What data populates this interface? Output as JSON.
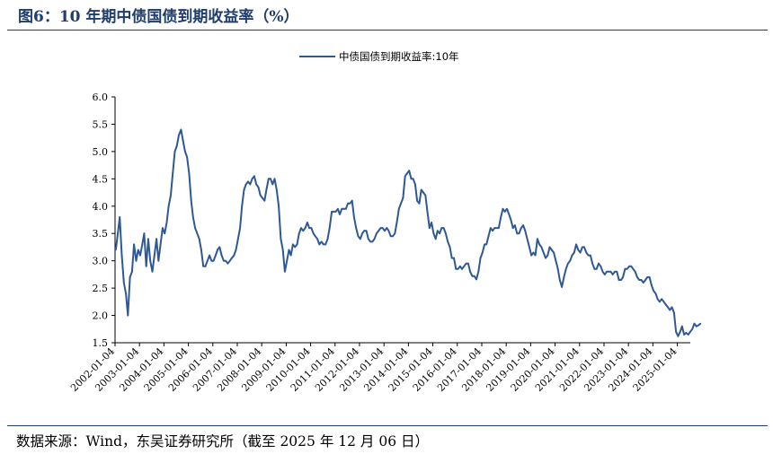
{
  "figure": {
    "title": "图6：10 年期中债国债到期收益率（%）",
    "source": "数据来源：Wind，东吴证券研究所（截至 2025 年 12 月 06 日）"
  },
  "colors": {
    "line": "#2f5994",
    "rule": "#1f3e6e",
    "axis": "#000000"
  },
  "chart_data": {
    "type": "line",
    "title": "",
    "xlabel": "",
    "ylabel": "",
    "ylim": [
      1.5,
      6.0
    ],
    "yticks": [
      "1.5",
      "2.0",
      "2.5",
      "3.0",
      "3.5",
      "4.0",
      "4.5",
      "5.0",
      "5.5",
      "6.0"
    ],
    "xticks": [
      "2002-01-04",
      "2003-01-04",
      "2004-01-04",
      "2005-01-04",
      "2006-01-04",
      "2007-01-04",
      "2008-01-04",
      "2009-01-04",
      "2010-01-04",
      "2011-01-04",
      "2012-01-04",
      "2013-01-04",
      "2014-01-04",
      "2015-01-04",
      "2016-01-04",
      "2017-01-04",
      "2018-01-04",
      "2019-01-04",
      "2020-01-04",
      "2021-01-04",
      "2022-01-04",
      "2023-01-04",
      "2024-01-04",
      "2025-01-04"
    ],
    "legend_position": "top-center",
    "grid": false,
    "series": [
      {
        "name": "中债国债到期收益率:10年",
        "points": [
          [
            "2002-01",
            3.2
          ],
          [
            "2002-02",
            3.5
          ],
          [
            "2002-03",
            3.8
          ],
          [
            "2002-04",
            3.1
          ],
          [
            "2002-05",
            2.6
          ],
          [
            "2002-06",
            2.4
          ],
          [
            "2002-07",
            2.0
          ],
          [
            "2002-08",
            2.7
          ],
          [
            "2002-09",
            2.8
          ],
          [
            "2002-10",
            3.3
          ],
          [
            "2002-11",
            3.0
          ],
          [
            "2002-12",
            3.2
          ],
          [
            "2003-01",
            3.1
          ],
          [
            "2003-02",
            3.3
          ],
          [
            "2003-03",
            3.5
          ],
          [
            "2003-04",
            2.9
          ],
          [
            "2003-05",
            3.4
          ],
          [
            "2003-06",
            3.0
          ],
          [
            "2003-07",
            2.8
          ],
          [
            "2003-08",
            3.1
          ],
          [
            "2003-09",
            3.4
          ],
          [
            "2003-10",
            3.0
          ],
          [
            "2003-11",
            3.3
          ],
          [
            "2003-12",
            3.6
          ],
          [
            "2004-01",
            3.5
          ],
          [
            "2004-02",
            3.7
          ],
          [
            "2004-03",
            4.0
          ],
          [
            "2004-04",
            4.2
          ],
          [
            "2004-05",
            4.6
          ],
          [
            "2004-06",
            5.0
          ],
          [
            "2004-07",
            5.1
          ],
          [
            "2004-08",
            5.3
          ],
          [
            "2004-09",
            5.4
          ],
          [
            "2004-10",
            5.2
          ],
          [
            "2004-11",
            5.0
          ],
          [
            "2004-12",
            4.9
          ],
          [
            "2005-01",
            4.6
          ],
          [
            "2005-02",
            4.1
          ],
          [
            "2005-03",
            3.8
          ],
          [
            "2005-04",
            3.6
          ],
          [
            "2005-05",
            3.5
          ],
          [
            "2005-06",
            3.4
          ],
          [
            "2005-07",
            3.2
          ],
          [
            "2005-08",
            2.9
          ],
          [
            "2005-09",
            2.9
          ],
          [
            "2005-10",
            3.0
          ],
          [
            "2005-11",
            3.1
          ],
          [
            "2005-12",
            3.0
          ],
          [
            "2006-01",
            3.0
          ],
          [
            "2006-02",
            3.1
          ],
          [
            "2006-03",
            3.2
          ],
          [
            "2006-04",
            3.25
          ],
          [
            "2006-05",
            3.1
          ],
          [
            "2006-06",
            3.0
          ],
          [
            "2006-07",
            3.0
          ],
          [
            "2006-08",
            2.95
          ],
          [
            "2006-09",
            3.0
          ],
          [
            "2006-10",
            3.05
          ],
          [
            "2006-11",
            3.1
          ],
          [
            "2006-12",
            3.2
          ],
          [
            "2007-01",
            3.4
          ],
          [
            "2007-02",
            3.6
          ],
          [
            "2007-03",
            4.0
          ],
          [
            "2007-04",
            4.3
          ],
          [
            "2007-05",
            4.4
          ],
          [
            "2007-06",
            4.45
          ],
          [
            "2007-07",
            4.4
          ],
          [
            "2007-08",
            4.5
          ],
          [
            "2007-09",
            4.55
          ],
          [
            "2007-10",
            4.4
          ],
          [
            "2007-11",
            4.35
          ],
          [
            "2007-12",
            4.2
          ],
          [
            "2008-01",
            4.15
          ],
          [
            "2008-02",
            4.1
          ],
          [
            "2008-03",
            4.3
          ],
          [
            "2008-04",
            4.5
          ],
          [
            "2008-05",
            4.5
          ],
          [
            "2008-06",
            4.4
          ],
          [
            "2008-07",
            4.5
          ],
          [
            "2008-08",
            4.3
          ],
          [
            "2008-09",
            4.0
          ],
          [
            "2008-10",
            3.4
          ],
          [
            "2008-11",
            3.2
          ],
          [
            "2008-12",
            2.8
          ],
          [
            "2009-01",
            3.0
          ],
          [
            "2009-02",
            3.2
          ],
          [
            "2009-03",
            3.1
          ],
          [
            "2009-04",
            3.3
          ],
          [
            "2009-05",
            3.25
          ],
          [
            "2009-06",
            3.3
          ],
          [
            "2009-07",
            3.5
          ],
          [
            "2009-08",
            3.6
          ],
          [
            "2009-09",
            3.55
          ],
          [
            "2009-10",
            3.6
          ],
          [
            "2009-11",
            3.7
          ],
          [
            "2009-12",
            3.6
          ],
          [
            "2010-01",
            3.6
          ],
          [
            "2010-02",
            3.5
          ],
          [
            "2010-03",
            3.45
          ],
          [
            "2010-04",
            3.4
          ],
          [
            "2010-05",
            3.3
          ],
          [
            "2010-06",
            3.35
          ],
          [
            "2010-07",
            3.3
          ],
          [
            "2010-08",
            3.3
          ],
          [
            "2010-09",
            3.4
          ],
          [
            "2010-10",
            3.6
          ],
          [
            "2010-11",
            3.9
          ],
          [
            "2010-12",
            3.9
          ],
          [
            "2011-01",
            3.9
          ],
          [
            "2011-02",
            3.95
          ],
          [
            "2011-03",
            3.85
          ],
          [
            "2011-04",
            3.95
          ],
          [
            "2011-05",
            3.95
          ],
          [
            "2011-06",
            3.95
          ],
          [
            "2011-07",
            4.05
          ],
          [
            "2011-08",
            4.05
          ],
          [
            "2011-09",
            4.1
          ],
          [
            "2011-10",
            3.8
          ],
          [
            "2011-11",
            3.6
          ],
          [
            "2011-12",
            3.45
          ],
          [
            "2012-01",
            3.4
          ],
          [
            "2012-02",
            3.5
          ],
          [
            "2012-03",
            3.55
          ],
          [
            "2012-04",
            3.55
          ],
          [
            "2012-05",
            3.4
          ],
          [
            "2012-06",
            3.35
          ],
          [
            "2012-07",
            3.35
          ],
          [
            "2012-08",
            3.4
          ],
          [
            "2012-09",
            3.5
          ],
          [
            "2012-10",
            3.55
          ],
          [
            "2012-11",
            3.6
          ],
          [
            "2012-12",
            3.6
          ],
          [
            "2013-01",
            3.55
          ],
          [
            "2013-02",
            3.6
          ],
          [
            "2013-03",
            3.55
          ],
          [
            "2013-04",
            3.45
          ],
          [
            "2013-05",
            3.45
          ],
          [
            "2013-06",
            3.5
          ],
          [
            "2013-07",
            3.7
          ],
          [
            "2013-08",
            3.95
          ],
          [
            "2013-09",
            4.05
          ],
          [
            "2013-10",
            4.15
          ],
          [
            "2013-11",
            4.55
          ],
          [
            "2013-12",
            4.6
          ],
          [
            "2014-01",
            4.65
          ],
          [
            "2014-02",
            4.5
          ],
          [
            "2014-03",
            4.5
          ],
          [
            "2014-04",
            4.4
          ],
          [
            "2014-05",
            4.1
          ],
          [
            "2014-06",
            4.05
          ],
          [
            "2014-07",
            4.3
          ],
          [
            "2014-08",
            4.25
          ],
          [
            "2014-09",
            4.2
          ],
          [
            "2014-10",
            3.9
          ],
          [
            "2014-11",
            3.6
          ],
          [
            "2014-12",
            3.7
          ],
          [
            "2015-01",
            3.5
          ],
          [
            "2015-02",
            3.4
          ],
          [
            "2015-03",
            3.55
          ],
          [
            "2015-04",
            3.5
          ],
          [
            "2015-05",
            3.6
          ],
          [
            "2015-06",
            3.6
          ],
          [
            "2015-07",
            3.5
          ],
          [
            "2015-08",
            3.35
          ],
          [
            "2015-09",
            3.25
          ],
          [
            "2015-10",
            3.05
          ],
          [
            "2015-11",
            3.05
          ],
          [
            "2015-12",
            2.85
          ],
          [
            "2016-01",
            2.85
          ],
          [
            "2016-02",
            2.9
          ],
          [
            "2016-03",
            2.85
          ],
          [
            "2016-04",
            2.9
          ],
          [
            "2016-05",
            2.95
          ],
          [
            "2016-06",
            2.95
          ],
          [
            "2016-07",
            2.8
          ],
          [
            "2016-08",
            2.72
          ],
          [
            "2016-09",
            2.72
          ],
          [
            "2016-10",
            2.66
          ],
          [
            "2016-11",
            2.8
          ],
          [
            "2016-12",
            3.05
          ],
          [
            "2017-01",
            3.15
          ],
          [
            "2017-02",
            3.3
          ],
          [
            "2017-03",
            3.3
          ],
          [
            "2017-04",
            3.45
          ],
          [
            "2017-05",
            3.6
          ],
          [
            "2017-06",
            3.55
          ],
          [
            "2017-07",
            3.6
          ],
          [
            "2017-08",
            3.6
          ],
          [
            "2017-09",
            3.6
          ],
          [
            "2017-10",
            3.8
          ],
          [
            "2017-11",
            3.95
          ],
          [
            "2017-12",
            3.9
          ],
          [
            "2018-01",
            3.95
          ],
          [
            "2018-02",
            3.85
          ],
          [
            "2018-03",
            3.75
          ],
          [
            "2018-04",
            3.6
          ],
          [
            "2018-05",
            3.65
          ],
          [
            "2018-06",
            3.5
          ],
          [
            "2018-07",
            3.5
          ],
          [
            "2018-08",
            3.6
          ],
          [
            "2018-09",
            3.65
          ],
          [
            "2018-10",
            3.55
          ],
          [
            "2018-11",
            3.4
          ],
          [
            "2018-12",
            3.25
          ],
          [
            "2019-01",
            3.1
          ],
          [
            "2019-02",
            3.15
          ],
          [
            "2019-03",
            3.1
          ],
          [
            "2019-04",
            3.4
          ],
          [
            "2019-05",
            3.3
          ],
          [
            "2019-06",
            3.25
          ],
          [
            "2019-07",
            3.15
          ],
          [
            "2019-08",
            3.05
          ],
          [
            "2019-09",
            3.1
          ],
          [
            "2019-10",
            3.25
          ],
          [
            "2019-11",
            3.2
          ],
          [
            "2019-12",
            3.15
          ],
          [
            "2020-01",
            3.0
          ],
          [
            "2020-02",
            2.85
          ],
          [
            "2020-03",
            2.65
          ],
          [
            "2020-04",
            2.52
          ],
          [
            "2020-05",
            2.7
          ],
          [
            "2020-06",
            2.85
          ],
          [
            "2020-07",
            2.95
          ],
          [
            "2020-08",
            3.0
          ],
          [
            "2020-09",
            3.1
          ],
          [
            "2020-10",
            3.15
          ],
          [
            "2020-11",
            3.3
          ],
          [
            "2020-12",
            3.2
          ],
          [
            "2021-01",
            3.15
          ],
          [
            "2021-02",
            3.25
          ],
          [
            "2021-03",
            3.25
          ],
          [
            "2021-04",
            3.15
          ],
          [
            "2021-05",
            3.1
          ],
          [
            "2021-06",
            3.1
          ],
          [
            "2021-07",
            2.95
          ],
          [
            "2021-08",
            2.85
          ],
          [
            "2021-09",
            2.85
          ],
          [
            "2021-10",
            2.95
          ],
          [
            "2021-11",
            2.9
          ],
          [
            "2021-12",
            2.8
          ],
          [
            "2022-01",
            2.75
          ],
          [
            "2022-02",
            2.8
          ],
          [
            "2022-03",
            2.8
          ],
          [
            "2022-04",
            2.8
          ],
          [
            "2022-05",
            2.75
          ],
          [
            "2022-06",
            2.8
          ],
          [
            "2022-07",
            2.8
          ],
          [
            "2022-08",
            2.65
          ],
          [
            "2022-09",
            2.65
          ],
          [
            "2022-10",
            2.7
          ],
          [
            "2022-11",
            2.85
          ],
          [
            "2022-12",
            2.85
          ],
          [
            "2023-01",
            2.9
          ],
          [
            "2023-02",
            2.9
          ],
          [
            "2023-03",
            2.85
          ],
          [
            "2023-04",
            2.8
          ],
          [
            "2023-05",
            2.7
          ],
          [
            "2023-06",
            2.65
          ],
          [
            "2023-07",
            2.65
          ],
          [
            "2023-08",
            2.6
          ],
          [
            "2023-09",
            2.65
          ],
          [
            "2023-10",
            2.7
          ],
          [
            "2023-11",
            2.7
          ],
          [
            "2023-12",
            2.55
          ],
          [
            "2024-01",
            2.45
          ],
          [
            "2024-02",
            2.4
          ],
          [
            "2024-03",
            2.3
          ],
          [
            "2024-04",
            2.25
          ],
          [
            "2024-05",
            2.3
          ],
          [
            "2024-06",
            2.25
          ],
          [
            "2024-07",
            2.2
          ],
          [
            "2024-08",
            2.15
          ],
          [
            "2024-09",
            2.1
          ],
          [
            "2024-10",
            2.15
          ],
          [
            "2024-11",
            2.05
          ],
          [
            "2024-12",
            1.7
          ],
          [
            "2025-01",
            1.62
          ],
          [
            "2025-02",
            1.7
          ],
          [
            "2025-03",
            1.8
          ],
          [
            "2025-04",
            1.65
          ],
          [
            "2025-05",
            1.68
          ],
          [
            "2025-06",
            1.65
          ],
          [
            "2025-07",
            1.7
          ],
          [
            "2025-08",
            1.75
          ],
          [
            "2025-09",
            1.85
          ],
          [
            "2025-10",
            1.8
          ],
          [
            "2025-11",
            1.82
          ],
          [
            "2025-12",
            1.85
          ]
        ]
      }
    ]
  }
}
